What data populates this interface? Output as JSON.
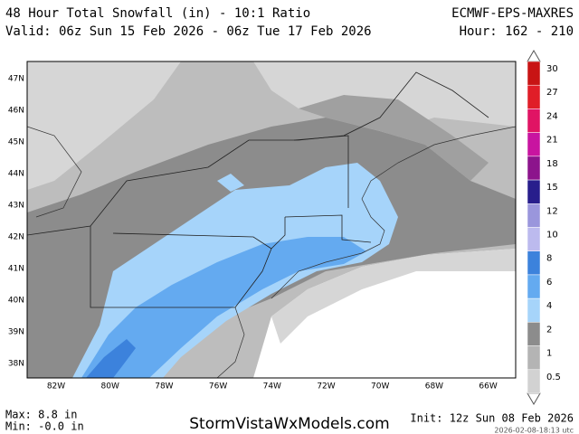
{
  "header": {
    "title": "48 Hour Total Snowfall (in) - 10:1 Ratio",
    "valid": "Valid: 06z Sun 15 Feb 2026 - 06z Tue 17 Feb 2026",
    "model": "ECMWF-EPS-MAXRES",
    "hour": "Hour: 162 - 210"
  },
  "map": {
    "lat_labels": [
      "47N",
      "46N",
      "45N",
      "44N",
      "43N",
      "42N",
      "41N",
      "40N",
      "39N",
      "38N"
    ],
    "lon_labels": [
      "82W",
      "80W",
      "78W",
      "76W",
      "74W",
      "72W",
      "70W",
      "68W",
      "66W"
    ]
  },
  "colorbar": {
    "ticks": [
      30,
      27,
      24,
      21,
      18,
      15,
      12,
      10,
      8,
      6,
      4,
      2,
      1,
      0.5
    ],
    "colors": [
      "#c81414",
      "#e01e28",
      "#e01464",
      "#c814a0",
      "#8c148c",
      "#281e8c",
      "#9a96dc",
      "#bcbaee",
      "#3c82dc",
      "#64aaf0",
      "#a6d4fa",
      "#8c8c8c",
      "#b4b4b4",
      "#d2d2d2"
    ]
  },
  "footer": {
    "max": "Max: 8.8 in",
    "min": "Min: -0.0 in",
    "site": "StormVistaWxModels.com",
    "init": "Init: 12z Sun 08 Feb 2026",
    "timestamp": "2026-02-08-18:13 utc"
  }
}
